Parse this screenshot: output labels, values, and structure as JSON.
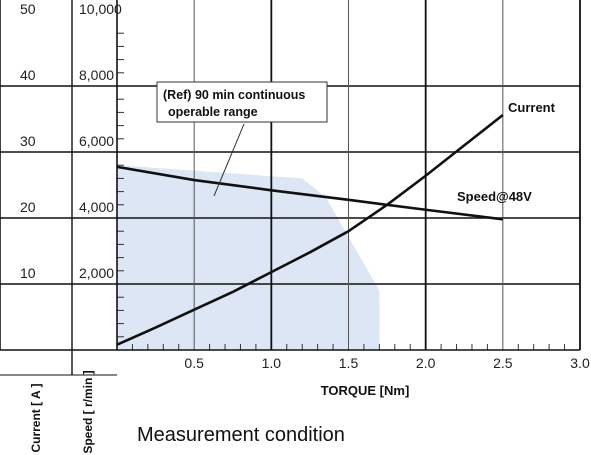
{
  "chart_data": {
    "type": "line",
    "xlabel": "TORQUE [Nm]",
    "x_ticks": [
      "0.5",
      "1.0",
      "1.5",
      "2.0",
      "2.5",
      "3.0"
    ],
    "xlim": [
      0,
      3.0
    ],
    "left_axes": [
      {
        "label": "Current [ A ]",
        "ticks": [
          "10",
          "20",
          "30",
          "40",
          "50"
        ],
        "ylim": [
          0,
          50
        ]
      },
      {
        "label": "Speed [ r/min ]",
        "ticks": [
          "2,000",
          "4,000",
          "6,000",
          "8,000",
          "10,000"
        ],
        "ylim": [
          0,
          10000
        ]
      }
    ],
    "series": [
      {
        "name": "Current",
        "axis": "current",
        "color": "#111111",
        "x": [
          0,
          0.25,
          0.5,
          0.75,
          1.0,
          1.25,
          1.5,
          1.75,
          2.0,
          2.25,
          2.5
        ],
        "y": [
          0.8,
          3.4,
          6.1,
          8.8,
          11.8,
          14.8,
          18.0,
          22.0,
          26.4,
          31.0,
          35.6
        ]
      },
      {
        "name": "Speed@48V",
        "axis": "speed",
        "color": "#111111",
        "x": [
          0,
          0.5,
          1.0,
          1.5,
          2.0,
          2.5
        ],
        "y": [
          5550,
          5150,
          4840,
          4550,
          4250,
          3960
        ]
      }
    ],
    "region": {
      "label": "(Ref) 90 min continuous operable range",
      "color": "#dde6f4",
      "x": [
        0,
        1.2,
        1.35,
        1.7,
        1.7,
        0
      ],
      "y": [
        5600,
        5200,
        4650,
        1800,
        0,
        0
      ]
    },
    "grid": true
  },
  "note": "Measurement condition"
}
